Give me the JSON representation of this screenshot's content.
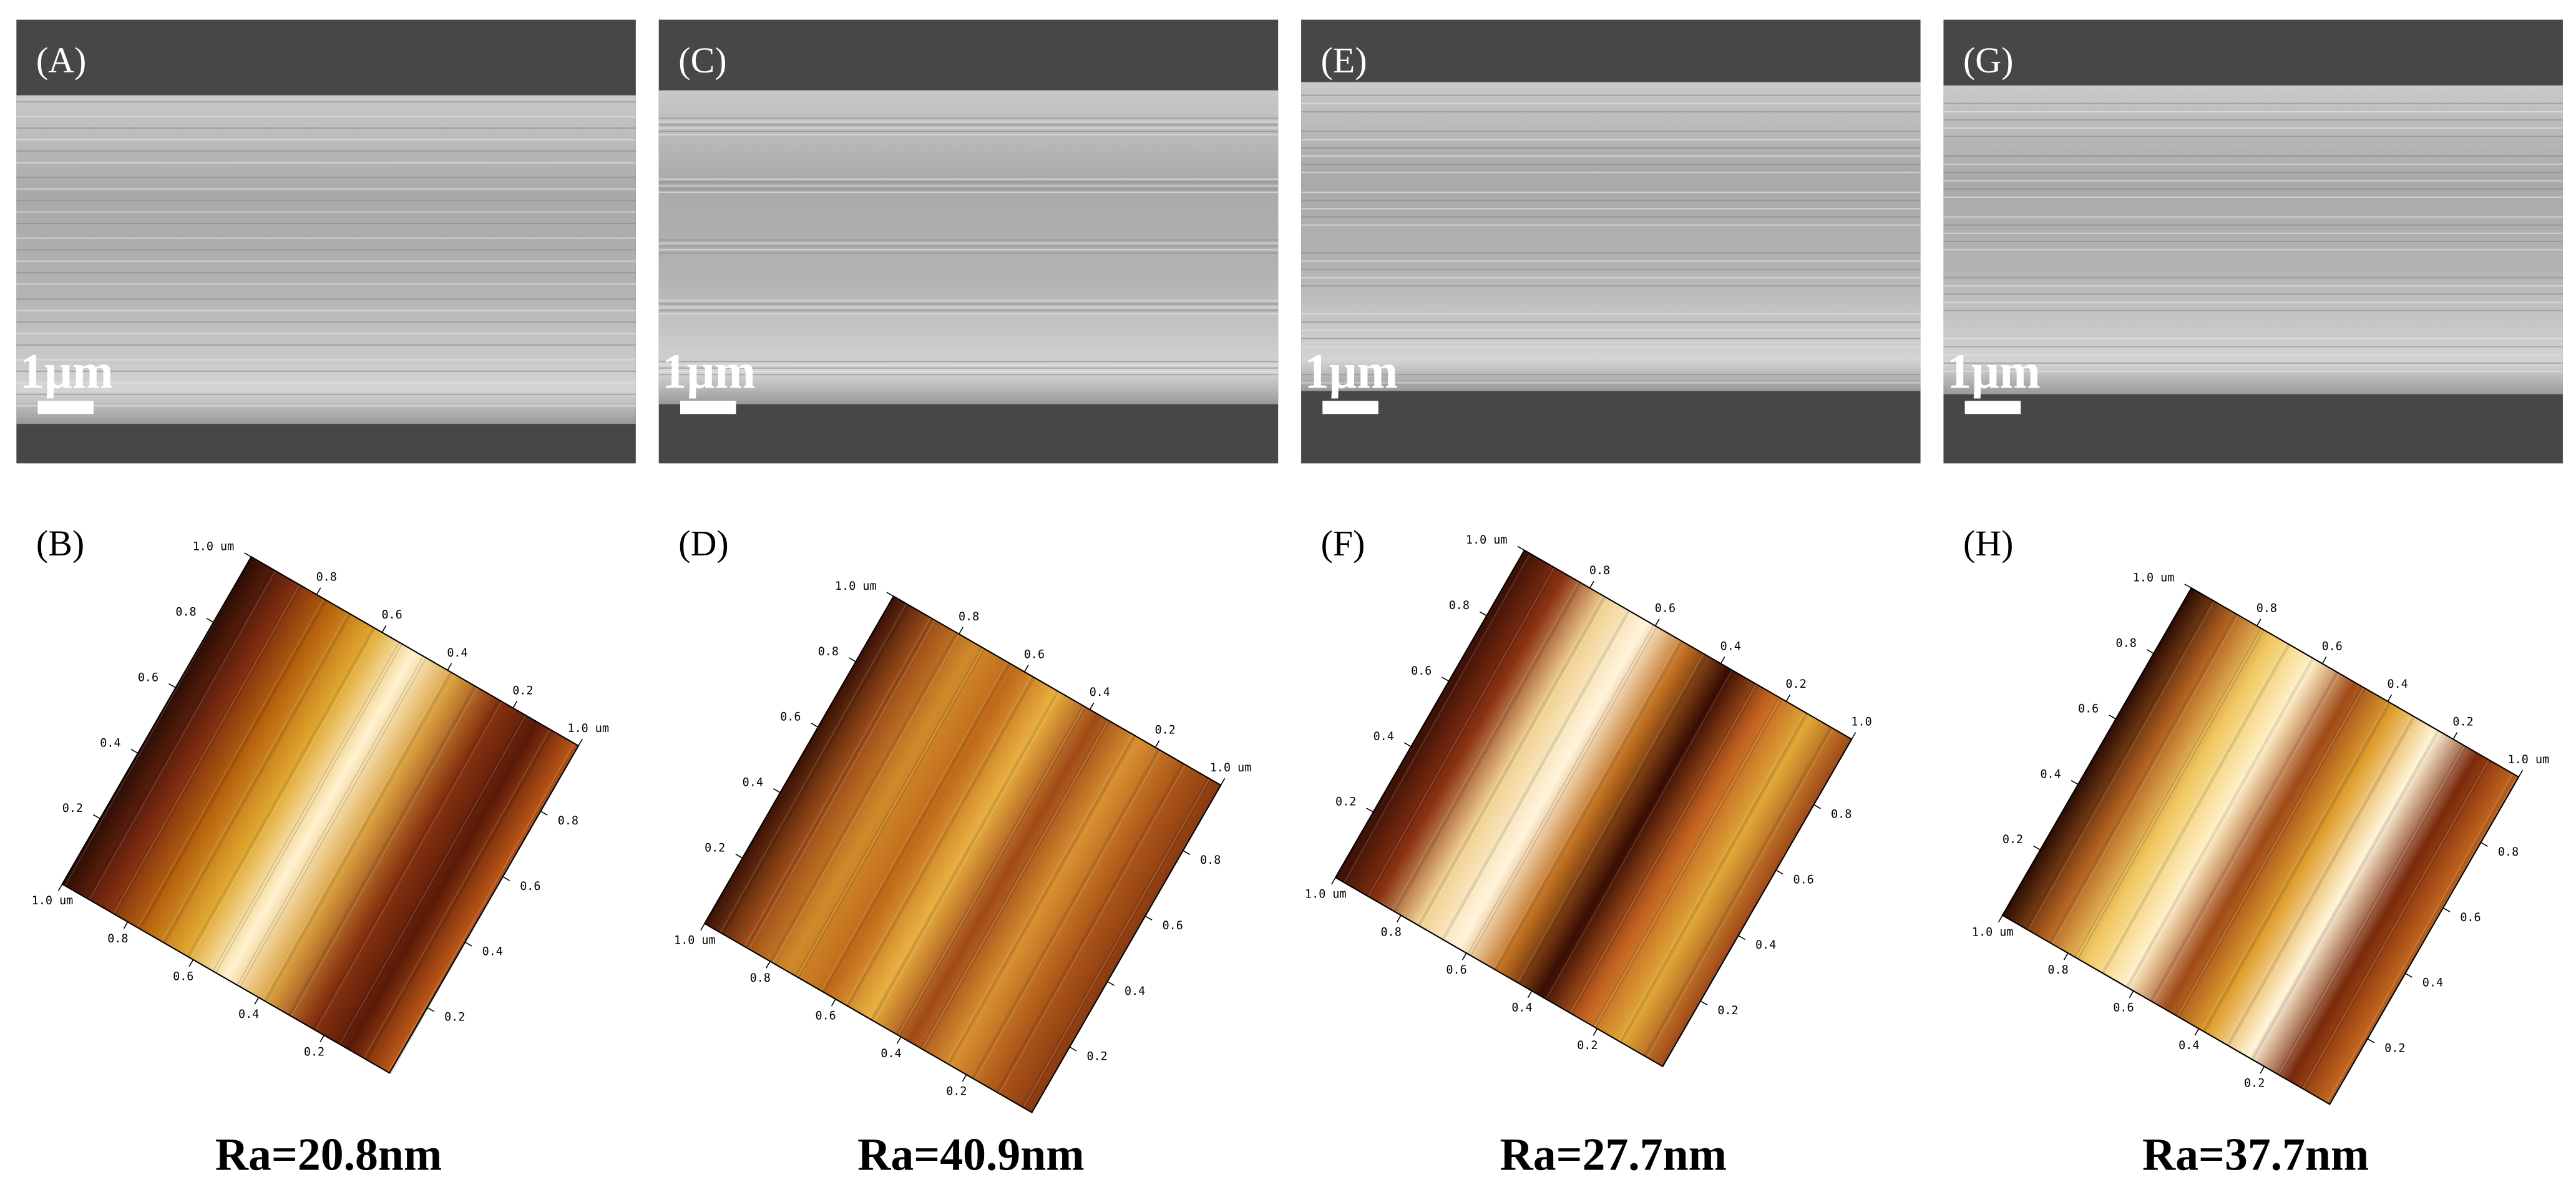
{
  "panels": [
    {
      "sem_label": "(A)",
      "scale_bar": "1μm",
      "afm_label": "(B)",
      "afm_axes": {
        "left": [
          "1.0 um",
          "0.8",
          "0.6",
          "0.4",
          "0.2"
        ],
        "top": [
          "0.8",
          "0.6",
          "0.4",
          "0.2",
          "1.0 um"
        ],
        "right": [
          "0.8",
          "0.6",
          "0.4",
          "0.2"
        ],
        "bottom": [
          "1.0 um",
          "0.8",
          "0.6",
          "0.4",
          "0.2"
        ]
      },
      "roughness": "Ra=20.8nm"
    },
    {
      "sem_label": "(C)",
      "scale_bar": "1μm",
      "afm_label": "(D)",
      "afm_axes": {
        "left": [
          "1.0 um",
          "0.8",
          "0.6",
          "0.4",
          "0.2"
        ],
        "top": [
          "0.8",
          "0.6",
          "0.4",
          "0.2",
          "1.0 um"
        ],
        "right": [
          "0.8",
          "0.6",
          "0.4",
          "0.2"
        ],
        "bottom": [
          "1.0 um",
          "0.8",
          "0.6",
          "0.4",
          "0.2"
        ]
      },
      "roughness": "Ra=40.9nm"
    },
    {
      "sem_label": "(E)",
      "scale_bar": "1μm",
      "afm_label": "(F)",
      "afm_axes": {
        "left": [
          "1.0 um",
          "0.8",
          "0.6",
          "0.4",
          "0.2"
        ],
        "top": [
          "0.8",
          "0.6",
          "0.4",
          "0.2",
          "1.0"
        ],
        "right": [
          "0.8",
          "0.6",
          "0.4",
          "0.2"
        ],
        "bottom": [
          "1.0 um",
          "0.8",
          "0.6",
          "0.4",
          "0.2"
        ]
      },
      "roughness": "Ra=27.7nm"
    },
    {
      "sem_label": "(G)",
      "scale_bar": "1μm",
      "afm_label": "(H)",
      "afm_axes": {
        "left": [
          "1.0 um",
          "0.8",
          "0.6",
          "0.4",
          "0.2"
        ],
        "top": [
          "0.8",
          "0.6",
          "0.4",
          "0.2",
          "1.0 um"
        ],
        "right": [
          "0.8",
          "0.6",
          "0.4",
          "0.2"
        ],
        "bottom": [
          "1.0 um",
          "0.8",
          "0.6",
          "0.4",
          "0.2"
        ]
      },
      "roughness": "Ra=37.7nm"
    }
  ]
}
